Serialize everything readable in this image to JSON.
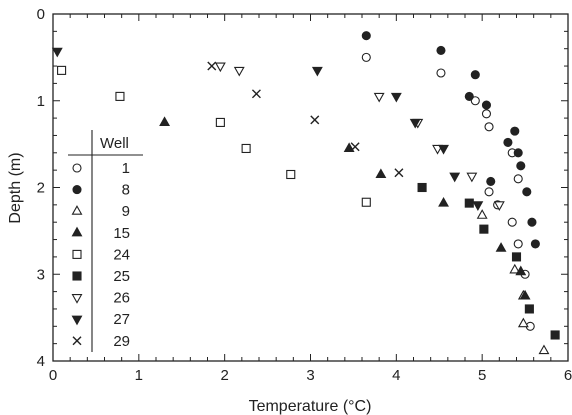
{
  "chart_data": {
    "type": "scatter",
    "title": "",
    "xlabel": "Temperature (°C)",
    "ylabel": "Depth (m)",
    "xlim": [
      0,
      6
    ],
    "ylim": [
      0,
      4
    ],
    "y_inverted": true,
    "x_ticks": [
      "0",
      "1",
      "2",
      "3",
      "4",
      "5",
      "6"
    ],
    "y_ticks": [
      "0",
      "1",
      "2",
      "3",
      "4"
    ],
    "grid": false,
    "legend": {
      "title": "Well",
      "placement": "left"
    },
    "series": [
      {
        "name": "1",
        "marker": "circle-open",
        "points": [
          [
            3.65,
            0.5
          ],
          [
            4.52,
            0.68
          ],
          [
            4.92,
            1.0
          ],
          [
            5.05,
            1.15
          ],
          [
            5.08,
            1.3
          ],
          [
            5.35,
            1.6
          ],
          [
            5.42,
            1.9
          ],
          [
            5.08,
            2.05
          ],
          [
            5.18,
            2.2
          ],
          [
            5.35,
            2.4
          ],
          [
            5.42,
            2.65
          ],
          [
            5.5,
            3.0
          ],
          [
            5.56,
            3.6
          ]
        ]
      },
      {
        "name": "8",
        "marker": "circle-filled",
        "points": [
          [
            3.65,
            0.25
          ],
          [
            4.52,
            0.42
          ],
          [
            4.92,
            0.7
          ],
          [
            4.85,
            0.95
          ],
          [
            5.05,
            1.05
          ],
          [
            5.38,
            1.35
          ],
          [
            5.3,
            1.48
          ],
          [
            5.42,
            1.6
          ],
          [
            5.45,
            1.75
          ],
          [
            5.1,
            1.93
          ],
          [
            5.52,
            2.05
          ],
          [
            5.58,
            2.4
          ],
          [
            5.62,
            2.65
          ]
        ]
      },
      {
        "name": "9",
        "marker": "triangle-up-open",
        "points": [
          [
            5.0,
            2.32
          ],
          [
            5.38,
            2.95
          ],
          [
            5.48,
            3.25
          ],
          [
            5.48,
            3.57
          ],
          [
            5.72,
            3.88
          ]
        ]
      },
      {
        "name": "15",
        "marker": "triangle-up-filled",
        "points": [
          [
            1.3,
            1.25
          ],
          [
            3.45,
            1.55
          ],
          [
            3.82,
            1.85
          ],
          [
            4.55,
            2.18
          ],
          [
            5.22,
            2.7
          ],
          [
            5.45,
            2.97
          ],
          [
            5.5,
            3.25
          ]
        ]
      },
      {
        "name": "24",
        "marker": "square-open",
        "points": [
          [
            0.1,
            0.65
          ],
          [
            0.78,
            0.95
          ],
          [
            1.95,
            1.25
          ],
          [
            2.25,
            1.55
          ],
          [
            2.77,
            1.85
          ],
          [
            3.65,
            2.17
          ]
        ]
      },
      {
        "name": "25",
        "marker": "square-filled",
        "points": [
          [
            4.3,
            2.0
          ],
          [
            4.85,
            2.18
          ],
          [
            5.02,
            2.48
          ],
          [
            5.4,
            2.8
          ],
          [
            5.55,
            3.4
          ],
          [
            5.85,
            3.7
          ]
        ]
      },
      {
        "name": "26",
        "marker": "triangle-down-open",
        "points": [
          [
            1.95,
            0.6
          ],
          [
            2.17,
            0.65
          ],
          [
            3.8,
            0.95
          ],
          [
            4.25,
            1.25
          ],
          [
            4.48,
            1.55
          ],
          [
            4.88,
            1.87
          ],
          [
            5.2,
            2.2
          ]
        ]
      },
      {
        "name": "27",
        "marker": "triangle-down-filled",
        "points": [
          [
            0.05,
            0.43
          ],
          [
            3.08,
            0.65
          ],
          [
            4.0,
            0.95
          ],
          [
            4.22,
            1.25
          ],
          [
            4.55,
            1.55
          ],
          [
            4.68,
            1.87
          ],
          [
            4.95,
            2.2
          ]
        ]
      },
      {
        "name": "29",
        "marker": "x",
        "points": [
          [
            1.85,
            0.6
          ],
          [
            2.37,
            0.92
          ],
          [
            3.05,
            1.22
          ],
          [
            3.52,
            1.53
          ],
          [
            4.03,
            1.83
          ]
        ]
      }
    ]
  }
}
